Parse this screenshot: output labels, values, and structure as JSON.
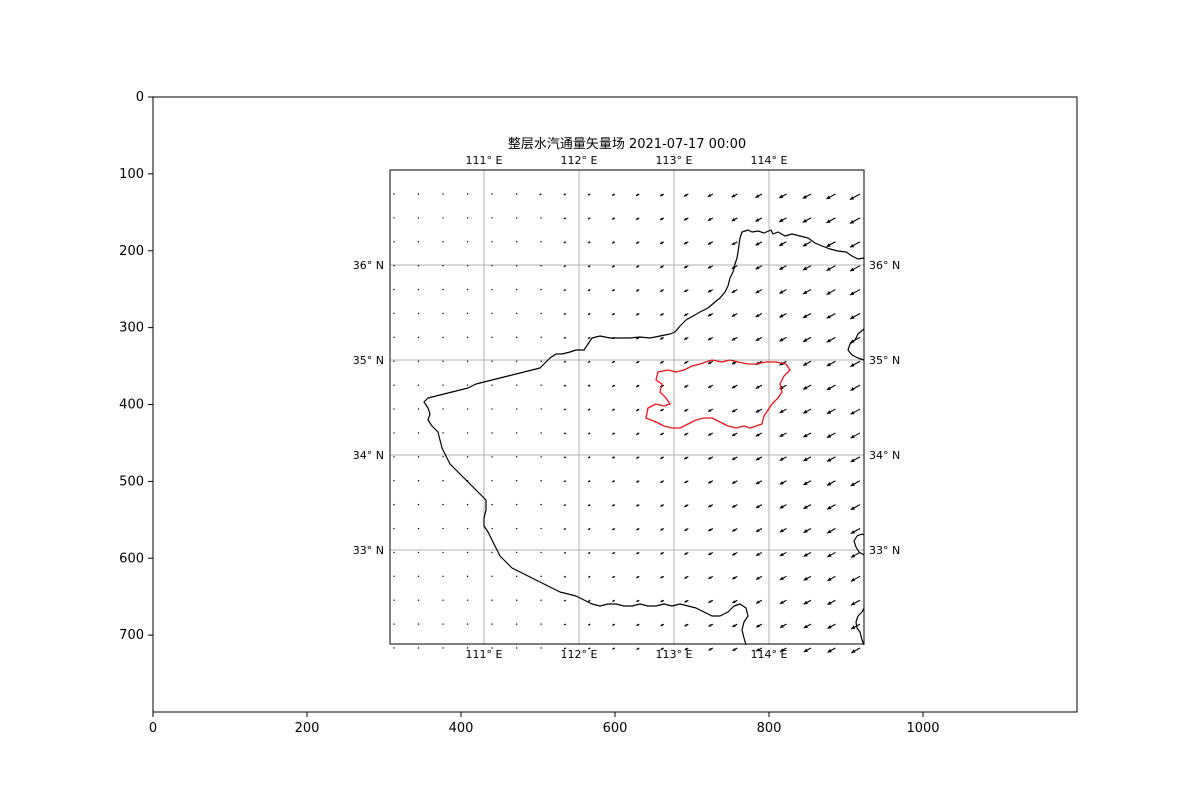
{
  "title": "整层水汽通量矢量场 2021-07-17 00:00",
  "outer_axes": {
    "x_ticks": [
      "0",
      "200",
      "400",
      "600",
      "800",
      "1000"
    ],
    "y_ticks": [
      "0",
      "100",
      "200",
      "300",
      "400",
      "500",
      "600",
      "700"
    ]
  },
  "map": {
    "lon_labels": [
      "111° E",
      "112° E",
      "113° E",
      "114° E"
    ],
    "lat_labels": [
      "36° N",
      "35° N",
      "34° N",
      "33° N"
    ],
    "lon_values": [
      111,
      112,
      113,
      114
    ],
    "lat_values": [
      36,
      35,
      34,
      33
    ],
    "province_outline_color": "#000000",
    "highlight_region_color": "#e8141c",
    "gridline_color": "#b0b0b0",
    "vector_color": "#000000",
    "vector_direction": "south-west"
  }
}
